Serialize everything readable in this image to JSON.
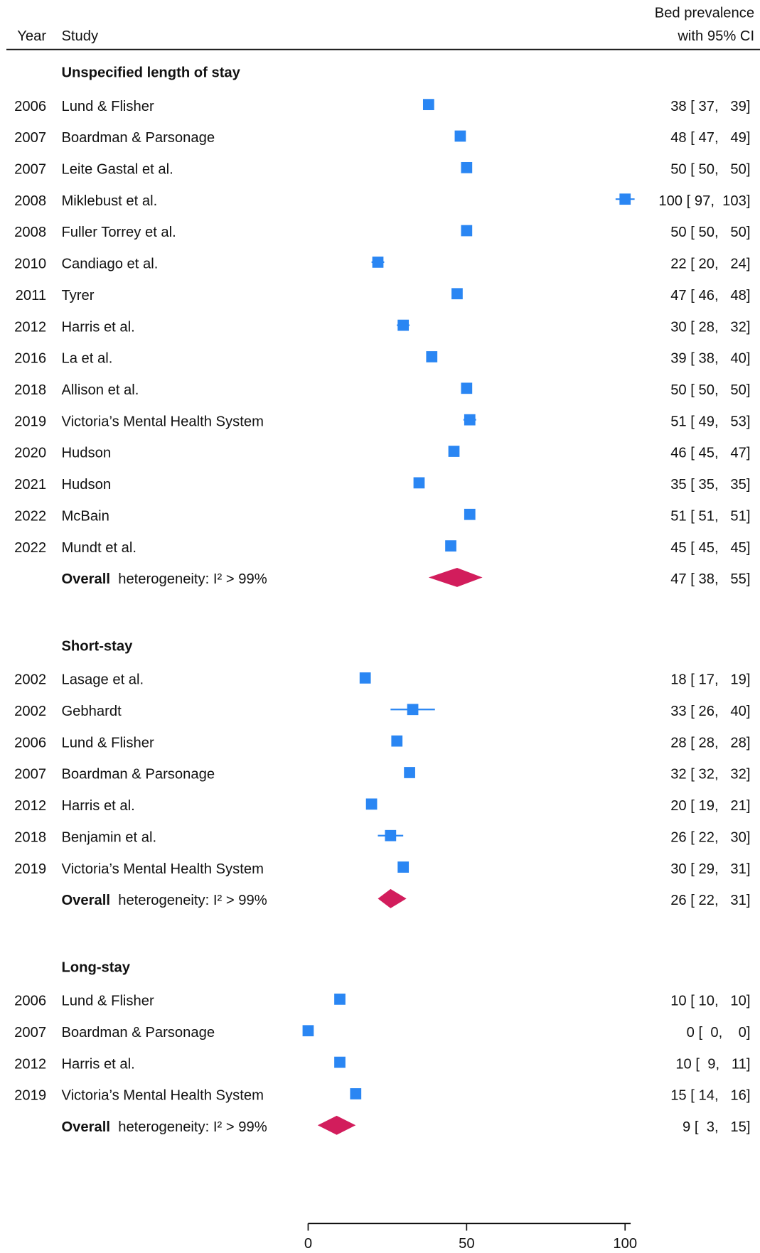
{
  "chart_data": {
    "type": "forest",
    "header": {
      "year": "Year",
      "study": "Study",
      "estimate": [
        "Bed prevalence",
        "with 95% CI"
      ]
    },
    "xlim": [
      0,
      100
    ],
    "xticks": [
      0,
      50,
      100
    ],
    "marker_color": "#2a86f3",
    "overall_color": "#d21d5c",
    "groups": [
      {
        "name": "Unspecified length of stay",
        "studies": [
          {
            "year": 2006,
            "study": "Lund & Flisher",
            "estimate": 38,
            "lower": 37,
            "upper": 39,
            "value_label": "38 [ 37,   39]"
          },
          {
            "year": 2007,
            "study": "Boardman & Parsonage",
            "estimate": 48,
            "lower": 47,
            "upper": 49,
            "value_label": "48 [ 47,   49]"
          },
          {
            "year": 2007,
            "study": "Leite Gastal et al.",
            "estimate": 50,
            "lower": 50,
            "upper": 50,
            "value_label": "50 [ 50,   50]"
          },
          {
            "year": 2008,
            "study": "Miklebust et al.",
            "estimate": 100,
            "lower": 97,
            "upper": 103,
            "value_label": "100 [ 97,  103]"
          },
          {
            "year": 2008,
            "study": "Fuller Torrey et al.",
            "estimate": 50,
            "lower": 50,
            "upper": 50,
            "value_label": "50 [ 50,   50]"
          },
          {
            "year": 2010,
            "study": "Candiago et al.",
            "estimate": 22,
            "lower": 20,
            "upper": 24,
            "value_label": "22 [ 20,   24]"
          },
          {
            "year": 2011,
            "study": "Tyrer",
            "estimate": 47,
            "lower": 46,
            "upper": 48,
            "value_label": "47 [ 46,   48]"
          },
          {
            "year": 2012,
            "study": "Harris et al.",
            "estimate": 30,
            "lower": 28,
            "upper": 32,
            "value_label": "30 [ 28,   32]"
          },
          {
            "year": 2016,
            "study": "La et al.",
            "estimate": 39,
            "lower": 38,
            "upper": 40,
            "value_label": "39 [ 38,   40]"
          },
          {
            "year": 2018,
            "study": "Allison et al.",
            "estimate": 50,
            "lower": 50,
            "upper": 50,
            "value_label": "50 [ 50,   50]"
          },
          {
            "year": 2019,
            "study": "Victoria’s Mental Health System",
            "estimate": 51,
            "lower": 49,
            "upper": 53,
            "value_label": "51 [ 49,   53]"
          },
          {
            "year": 2020,
            "study": "Hudson",
            "estimate": 46,
            "lower": 45,
            "upper": 47,
            "value_label": "46 [ 45,   47]"
          },
          {
            "year": 2021,
            "study": "Hudson",
            "estimate": 35,
            "lower": 35,
            "upper": 35,
            "value_label": "35 [ 35,   35]"
          },
          {
            "year": 2022,
            "study": "McBain",
            "estimate": 51,
            "lower": 51,
            "upper": 51,
            "value_label": "51 [ 51,   51]"
          },
          {
            "year": 2022,
            "study": "Mundt et al.",
            "estimate": 45,
            "lower": 45,
            "upper": 45,
            "value_label": "45 [ 45,   45]"
          }
        ],
        "overall": {
          "label": "Overall",
          "note": "heterogeneity: I² > 99%",
          "estimate": 47,
          "lower": 38,
          "upper": 55,
          "value_label": "47 [ 38,   55]"
        }
      },
      {
        "name": "Short-stay",
        "studies": [
          {
            "year": 2002,
            "study": "Lasage et al.",
            "estimate": 18,
            "lower": 17,
            "upper": 19,
            "value_label": "18 [ 17,   19]"
          },
          {
            "year": 2002,
            "study": "Gebhardt",
            "estimate": 33,
            "lower": 26,
            "upper": 40,
            "value_label": "33 [ 26,   40]"
          },
          {
            "year": 2006,
            "study": "Lund & Flisher",
            "estimate": 28,
            "lower": 28,
            "upper": 28,
            "value_label": "28 [ 28,   28]"
          },
          {
            "year": 2007,
            "study": "Boardman & Parsonage",
            "estimate": 32,
            "lower": 32,
            "upper": 32,
            "value_label": "32 [ 32,   32]"
          },
          {
            "year": 2012,
            "study": "Harris et al.",
            "estimate": 20,
            "lower": 19,
            "upper": 21,
            "value_label": "20 [ 19,   21]"
          },
          {
            "year": 2018,
            "study": "Benjamin et al.",
            "estimate": 26,
            "lower": 22,
            "upper": 30,
            "value_label": "26 [ 22,   30]"
          },
          {
            "year": 2019,
            "study": "Victoria’s Mental Health System",
            "estimate": 30,
            "lower": 29,
            "upper": 31,
            "value_label": "30 [ 29,   31]"
          }
        ],
        "overall": {
          "label": "Overall",
          "note": "heterogeneity: I² > 99%",
          "estimate": 26,
          "lower": 22,
          "upper": 31,
          "value_label": "26 [ 22,   31]"
        }
      },
      {
        "name": "Long-stay",
        "studies": [
          {
            "year": 2006,
            "study": "Lund & Flisher",
            "estimate": 10,
            "lower": 10,
            "upper": 10,
            "value_label": "10 [ 10,   10]"
          },
          {
            "year": 2007,
            "study": "Boardman & Parsonage",
            "estimate": 0,
            "lower": 0,
            "upper": 0,
            "value_label": "0 [  0,    0]"
          },
          {
            "year": 2012,
            "study": "Harris et al.",
            "estimate": 10,
            "lower": 9,
            "upper": 11,
            "value_label": "10 [  9,   11]"
          },
          {
            "year": 2019,
            "study": "Victoria’s Mental Health System",
            "estimate": 15,
            "lower": 14,
            "upper": 16,
            "value_label": "15 [ 14,   16]"
          }
        ],
        "overall": {
          "label": "Overall",
          "note": "heterogeneity: I² > 99%",
          "estimate": 9,
          "lower": 3,
          "upper": 15,
          "value_label": "9 [  3,   15]"
        }
      }
    ]
  }
}
